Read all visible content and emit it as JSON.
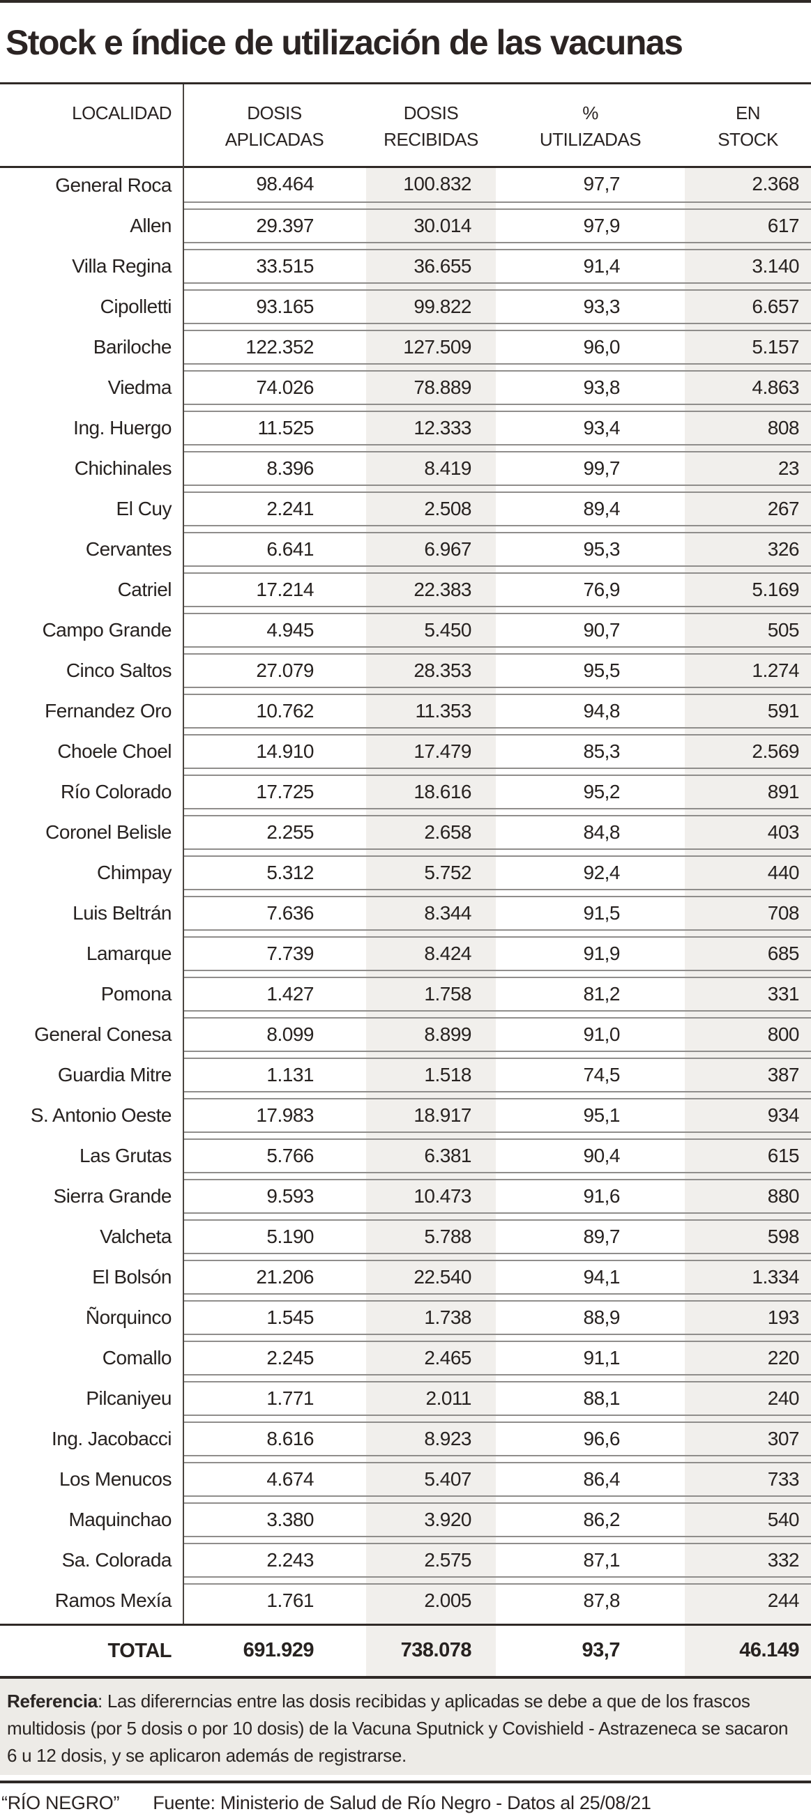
{
  "chart_data": {
    "type": "table",
    "title": "Stock e índice de utilización de las vacunas",
    "columns": [
      {
        "line1": "LOCALIDAD",
        "line2": ""
      },
      {
        "line1": "DOSIS",
        "line2": "APLICADAS"
      },
      {
        "line1": "DOSIS",
        "line2": "RECIBIDAS"
      },
      {
        "line1": "%",
        "line2": "UTILIZADAS"
      },
      {
        "line1": "EN",
        "line2": "STOCK"
      }
    ],
    "rows": [
      {
        "localidad": "General Roca",
        "dosis_aplicadas": "98.464",
        "dosis_recibidas": "100.832",
        "pct_utilizadas": "97,7",
        "en_stock": "2.368"
      },
      {
        "localidad": "Allen",
        "dosis_aplicadas": "29.397",
        "dosis_recibidas": "30.014",
        "pct_utilizadas": "97,9",
        "en_stock": "617"
      },
      {
        "localidad": "Villa Regina",
        "dosis_aplicadas": "33.515",
        "dosis_recibidas": "36.655",
        "pct_utilizadas": "91,4",
        "en_stock": "3.140"
      },
      {
        "localidad": "Cipolletti",
        "dosis_aplicadas": "93.165",
        "dosis_recibidas": "99.822",
        "pct_utilizadas": "93,3",
        "en_stock": "6.657"
      },
      {
        "localidad": "Bariloche",
        "dosis_aplicadas": "122.352",
        "dosis_recibidas": "127.509",
        "pct_utilizadas": "96,0",
        "en_stock": "5.157"
      },
      {
        "localidad": "Viedma",
        "dosis_aplicadas": "74.026",
        "dosis_recibidas": "78.889",
        "pct_utilizadas": "93,8",
        "en_stock": "4.863"
      },
      {
        "localidad": "Ing. Huergo",
        "dosis_aplicadas": "11.525",
        "dosis_recibidas": "12.333",
        "pct_utilizadas": "93,4",
        "en_stock": "808"
      },
      {
        "localidad": "Chichinales",
        "dosis_aplicadas": "8.396",
        "dosis_recibidas": "8.419",
        "pct_utilizadas": "99,7",
        "en_stock": "23"
      },
      {
        "localidad": "El Cuy",
        "dosis_aplicadas": "2.241",
        "dosis_recibidas": "2.508",
        "pct_utilizadas": "89,4",
        "en_stock": "267"
      },
      {
        "localidad": "Cervantes",
        "dosis_aplicadas": "6.641",
        "dosis_recibidas": "6.967",
        "pct_utilizadas": "95,3",
        "en_stock": "326"
      },
      {
        "localidad": "Catriel",
        "dosis_aplicadas": "17.214",
        "dosis_recibidas": "22.383",
        "pct_utilizadas": "76,9",
        "en_stock": "5.169"
      },
      {
        "localidad": "Campo Grande",
        "dosis_aplicadas": "4.945",
        "dosis_recibidas": "5.450",
        "pct_utilizadas": "90,7",
        "en_stock": "505"
      },
      {
        "localidad": "Cinco Saltos",
        "dosis_aplicadas": "27.079",
        "dosis_recibidas": "28.353",
        "pct_utilizadas": "95,5",
        "en_stock": "1.274"
      },
      {
        "localidad": "Fernandez Oro",
        "dosis_aplicadas": "10.762",
        "dosis_recibidas": "11.353",
        "pct_utilizadas": "94,8",
        "en_stock": "591"
      },
      {
        "localidad": "Choele Choel",
        "dosis_aplicadas": "14.910",
        "dosis_recibidas": "17.479",
        "pct_utilizadas": "85,3",
        "en_stock": "2.569"
      },
      {
        "localidad": "Río Colorado",
        "dosis_aplicadas": "17.725",
        "dosis_recibidas": "18.616",
        "pct_utilizadas": "95,2",
        "en_stock": "891"
      },
      {
        "localidad": "Coronel Belisle",
        "dosis_aplicadas": "2.255",
        "dosis_recibidas": "2.658",
        "pct_utilizadas": "84,8",
        "en_stock": "403"
      },
      {
        "localidad": "Chimpay",
        "dosis_aplicadas": "5.312",
        "dosis_recibidas": "5.752",
        "pct_utilizadas": "92,4",
        "en_stock": "440"
      },
      {
        "localidad": "Luis Beltrán",
        "dosis_aplicadas": "7.636",
        "dosis_recibidas": "8.344",
        "pct_utilizadas": "91,5",
        "en_stock": "708"
      },
      {
        "localidad": "Lamarque",
        "dosis_aplicadas": "7.739",
        "dosis_recibidas": "8.424",
        "pct_utilizadas": "91,9",
        "en_stock": "685"
      },
      {
        "localidad": "Pomona",
        "dosis_aplicadas": "1.427",
        "dosis_recibidas": "1.758",
        "pct_utilizadas": "81,2",
        "en_stock": "331"
      },
      {
        "localidad": "General Conesa",
        "dosis_aplicadas": "8.099",
        "dosis_recibidas": "8.899",
        "pct_utilizadas": "91,0",
        "en_stock": "800"
      },
      {
        "localidad": "Guardia Mitre",
        "dosis_aplicadas": "1.131",
        "dosis_recibidas": "1.518",
        "pct_utilizadas": "74,5",
        "en_stock": "387"
      },
      {
        "localidad": "S. Antonio Oeste",
        "dosis_aplicadas": "17.983",
        "dosis_recibidas": "18.917",
        "pct_utilizadas": "95,1",
        "en_stock": "934"
      },
      {
        "localidad": "Las Grutas",
        "dosis_aplicadas": "5.766",
        "dosis_recibidas": "6.381",
        "pct_utilizadas": "90,4",
        "en_stock": "615"
      },
      {
        "localidad": "Sierra Grande",
        "dosis_aplicadas": "9.593",
        "dosis_recibidas": "10.473",
        "pct_utilizadas": "91,6",
        "en_stock": "880"
      },
      {
        "localidad": "Valcheta",
        "dosis_aplicadas": "5.190",
        "dosis_recibidas": "5.788",
        "pct_utilizadas": "89,7",
        "en_stock": "598"
      },
      {
        "localidad": "El Bolsón",
        "dosis_aplicadas": "21.206",
        "dosis_recibidas": "22.540",
        "pct_utilizadas": "94,1",
        "en_stock": "1.334"
      },
      {
        "localidad": "Ñorquinco",
        "dosis_aplicadas": "1.545",
        "dosis_recibidas": "1.738",
        "pct_utilizadas": "88,9",
        "en_stock": "193"
      },
      {
        "localidad": "Comallo",
        "dosis_aplicadas": "2.245",
        "dosis_recibidas": "2.465",
        "pct_utilizadas": "91,1",
        "en_stock": "220"
      },
      {
        "localidad": "Pilcaniyeu",
        "dosis_aplicadas": "1.771",
        "dosis_recibidas": "2.011",
        "pct_utilizadas": "88,1",
        "en_stock": "240"
      },
      {
        "localidad": "Ing. Jacobacci",
        "dosis_aplicadas": "8.616",
        "dosis_recibidas": "8.923",
        "pct_utilizadas": "96,6",
        "en_stock": "307"
      },
      {
        "localidad": "Los Menucos",
        "dosis_aplicadas": "4.674",
        "dosis_recibidas": "5.407",
        "pct_utilizadas": "86,4",
        "en_stock": "733"
      },
      {
        "localidad": "Maquinchao",
        "dosis_aplicadas": "3.380",
        "dosis_recibidas": "3.920",
        "pct_utilizadas": "86,2",
        "en_stock": "540"
      },
      {
        "localidad": "Sa. Colorada",
        "dosis_aplicadas": "2.243",
        "dosis_recibidas": "2.575",
        "pct_utilizadas": "87,1",
        "en_stock": "332"
      },
      {
        "localidad": "Ramos Mexía",
        "dosis_aplicadas": "1.761",
        "dosis_recibidas": "2.005",
        "pct_utilizadas": "87,8",
        "en_stock": "244"
      }
    ],
    "total": {
      "localidad": "TOTAL",
      "dosis_aplicadas": "691.929",
      "dosis_recibidas": "738.078",
      "pct_utilizadas": "93,7",
      "en_stock": "46.149"
    }
  },
  "reference": {
    "label": "Referencia",
    "text": ": Las difererncias entre las dosis recibidas y aplicadas se debe a que de los frascos multidosis (por 5 dosis o por 10 dosis) de la Vacuna Sputnick y Covishield - Astrazeneca se sacaron 6 u 12 dosis, y se aplicaron además de registrarse."
  },
  "footer": {
    "brand": "“RÍO NEGRO”",
    "source": "Fuente: Ministerio de Salud de Río Negro - Datos al 25/08/21"
  },
  "colors": {
    "ink": "#2b2423",
    "stripe": "#f1efec",
    "reference_box": "#edebe7",
    "row_separator": "#8f8d8b"
  }
}
